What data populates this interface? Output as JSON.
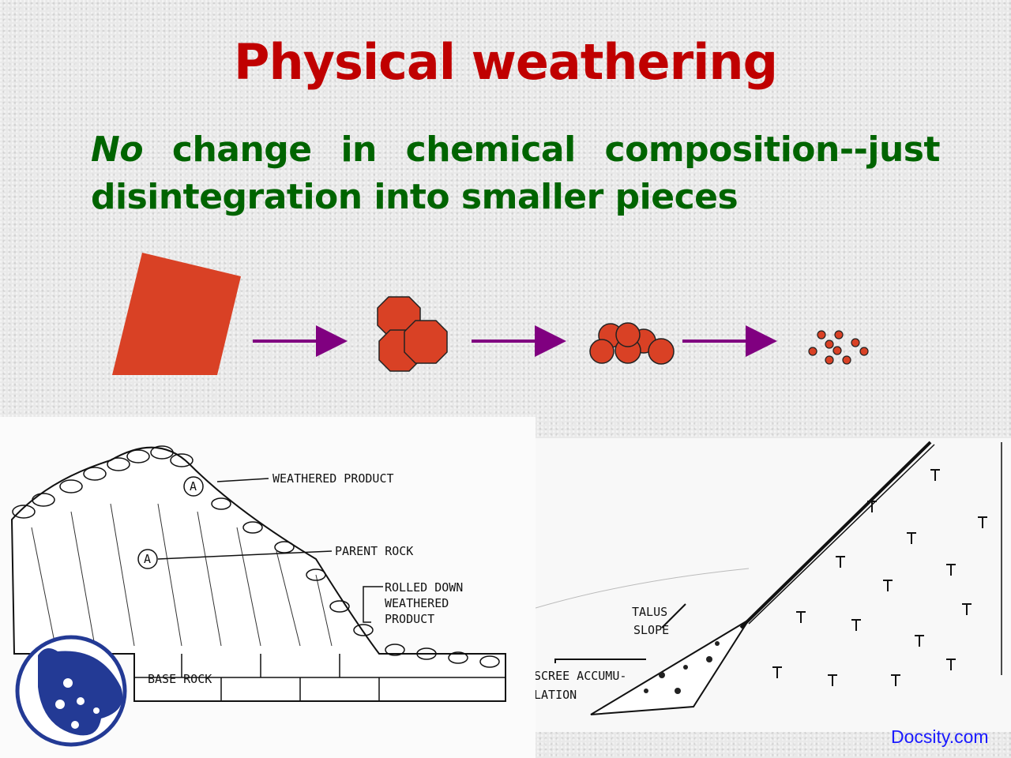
{
  "slide": {
    "title": "Physical weathering",
    "subtitle_first": "No",
    "subtitle_line1_rest": " change in chemical composition--just",
    "subtitle_line2": "disintegration into smaller pieces"
  },
  "colors": {
    "title": "#c00000",
    "subtitle": "#006400",
    "rock": "#d94125",
    "arrow": "#800080",
    "logo": "#233a95",
    "watermark": "#1a1aff"
  },
  "sequence": [
    "large-block",
    "broken-blocks",
    "rounded-fragments",
    "small-particles"
  ],
  "diagram_left": {
    "labels": {
      "weathered_product": "WEATHERED PRODUCT",
      "parent_rock": "PARENT ROCK",
      "rolled_1": "ROLLED DOWN",
      "rolled_2": "WEATHERED",
      "rolled_3": "PRODUCT",
      "base_rock": "BASE ROCK",
      "marker": "A"
    }
  },
  "diagram_right": {
    "labels": {
      "talus_1": "TALUS",
      "talus_2": "SLOPE",
      "scree_1": "SCREE ACCUMU-",
      "scree_2": "LATION"
    }
  },
  "watermark": "Docsity.com"
}
